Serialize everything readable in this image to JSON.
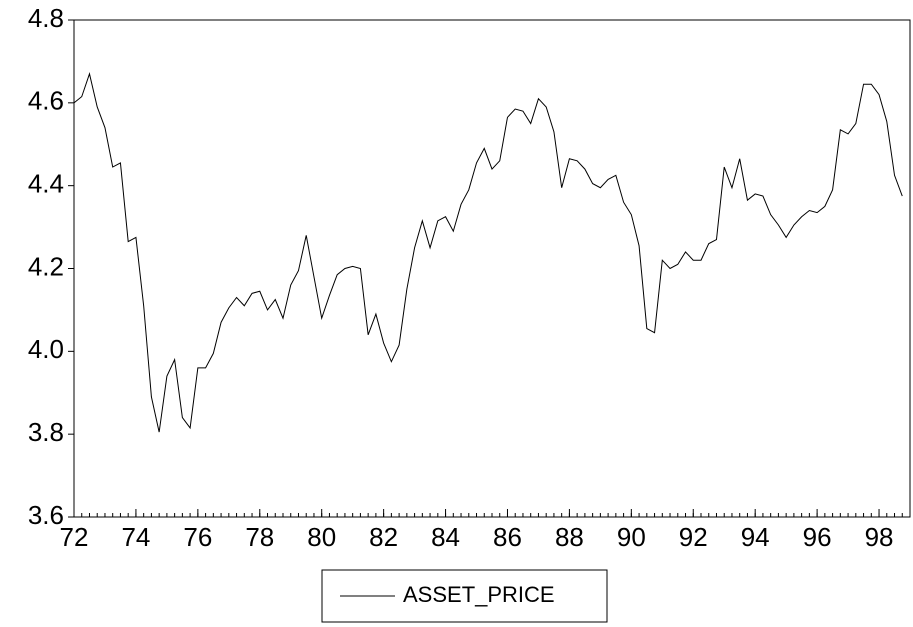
{
  "chart_data": {
    "type": "line",
    "x": [
      72,
      72.25,
      72.5,
      72.75,
      73,
      73.25,
      73.5,
      73.75,
      74,
      74.25,
      74.5,
      74.75,
      75,
      75.25,
      75.5,
      75.75,
      76,
      76.25,
      76.5,
      76.75,
      77,
      77.25,
      77.5,
      77.75,
      78,
      78.25,
      78.5,
      78.75,
      79,
      79.25,
      79.5,
      79.75,
      80,
      80.25,
      80.5,
      80.75,
      81,
      81.25,
      81.5,
      81.75,
      82,
      82.25,
      82.5,
      82.75,
      83,
      83.25,
      83.5,
      83.75,
      84,
      84.25,
      84.5,
      84.75,
      85,
      85.25,
      85.5,
      85.75,
      86,
      86.25,
      86.5,
      86.75,
      87,
      87.25,
      87.5,
      87.75,
      88,
      88.25,
      88.5,
      88.75,
      89,
      89.25,
      89.5,
      89.75,
      90,
      90.25,
      90.5,
      90.75,
      91,
      91.25,
      91.5,
      91.75,
      92,
      92.25,
      92.5,
      92.75,
      93,
      93.25,
      93.5,
      93.75,
      94,
      94.25,
      94.5,
      94.75,
      95,
      95.25,
      95.5,
      95.75,
      96,
      96.25,
      96.5,
      96.75,
      97,
      97.25,
      97.5,
      97.75,
      98,
      98.25,
      98.5,
      98.75
    ],
    "series": [
      {
        "name": "ASSET_PRICE",
        "color": "#000000",
        "values": [
          4.6,
          4.615,
          4.67,
          4.59,
          4.54,
          4.445,
          4.455,
          4.265,
          4.275,
          4.11,
          3.89,
          3.805,
          3.94,
          3.98,
          3.84,
          3.815,
          3.96,
          3.96,
          3.995,
          4.07,
          4.105,
          4.13,
          4.11,
          4.14,
          4.145,
          4.1,
          4.125,
          4.08,
          4.16,
          4.195,
          4.28,
          4.18,
          4.08,
          4.135,
          4.185,
          4.2,
          4.205,
          4.2,
          4.04,
          4.09,
          4.02,
          3.975,
          4.015,
          4.15,
          4.25,
          4.315,
          4.25,
          4.315,
          4.325,
          4.29,
          4.355,
          4.39,
          4.455,
          4.49,
          4.44,
          4.46,
          4.565,
          4.585,
          4.58,
          4.55,
          4.61,
          4.59,
          4.53,
          4.395,
          4.465,
          4.46,
          4.44,
          4.405,
          4.395,
          4.415,
          4.425,
          4.36,
          4.33,
          4.255,
          4.055,
          4.045,
          4.22,
          4.2,
          4.21,
          4.24,
          4.22,
          4.22,
          4.26,
          4.27,
          4.445,
          4.395,
          4.465,
          4.365,
          4.38,
          4.375,
          4.33,
          4.305,
          4.275,
          4.305,
          4.325,
          4.34,
          4.335,
          4.35,
          4.39,
          4.535,
          4.525,
          4.55,
          4.645,
          4.645,
          4.62,
          4.555,
          4.425,
          4.375
        ]
      }
    ],
    "xlim": [
      72,
      99
    ],
    "xticks": [
      72,
      74,
      76,
      78,
      80,
      82,
      84,
      86,
      88,
      90,
      92,
      94,
      96,
      98
    ],
    "ylim": [
      3.6,
      4.8
    ],
    "yticks": [
      {
        "value": 3.6,
        "label": "3.6"
      },
      {
        "value": 3.8,
        "label": "3.8"
      },
      {
        "value": 4.0,
        "label": "4.0"
      },
      {
        "value": 4.2,
        "label": "4.2"
      },
      {
        "value": 4.4,
        "label": "4.4"
      },
      {
        "value": 4.6,
        "label": "4.6"
      },
      {
        "value": 4.8,
        "label": "4.8"
      }
    ],
    "grid": false,
    "legend": "bottom"
  }
}
